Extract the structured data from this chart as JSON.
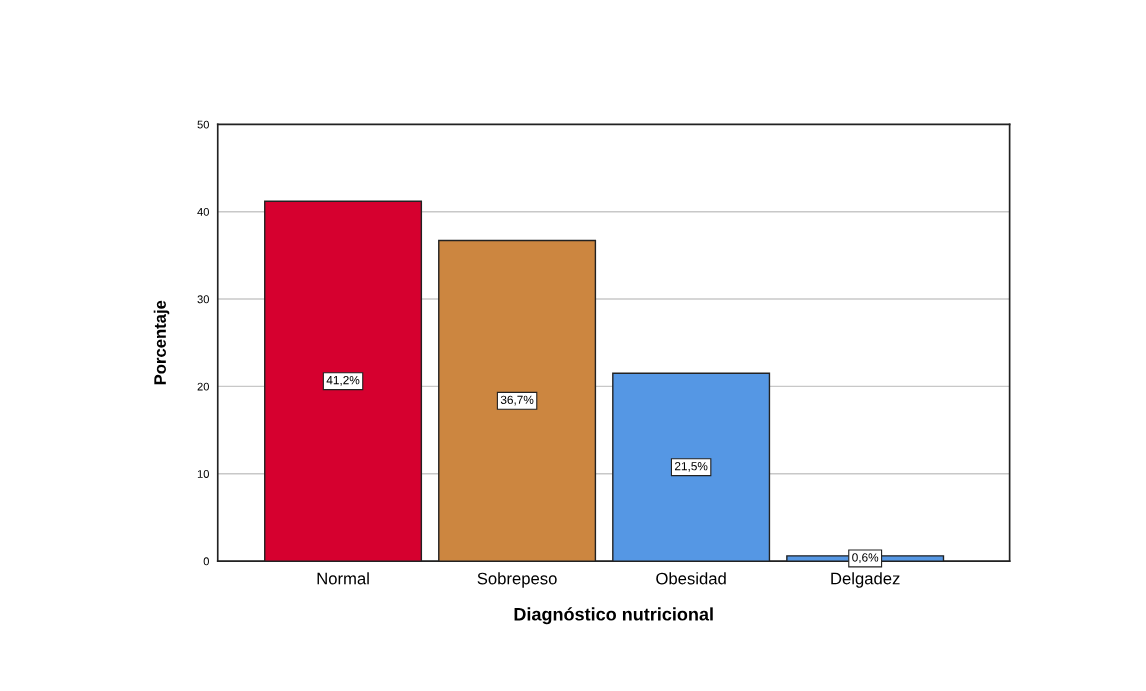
{
  "chart_data": {
    "type": "bar",
    "categories": [
      "Normal",
      "Sobrepeso",
      "Obesidad",
      "Delgadez"
    ],
    "values": [
      41.2,
      36.7,
      21.5,
      0.6
    ],
    "colors": [
      "#d6002f",
      "#cc8640",
      "#5597e4",
      "#5597e4"
    ],
    "value_labels": [
      "41,2%",
      "36,7%",
      "21,5%",
      "0,6%"
    ],
    "xlabel": "Diagnóstico nutricional",
    "ylabel": "Porcentaje",
    "ylim": [
      0,
      50
    ],
    "yticks": [
      0,
      10,
      20,
      30,
      40,
      50
    ],
    "grid": "y",
    "legend": false
  }
}
